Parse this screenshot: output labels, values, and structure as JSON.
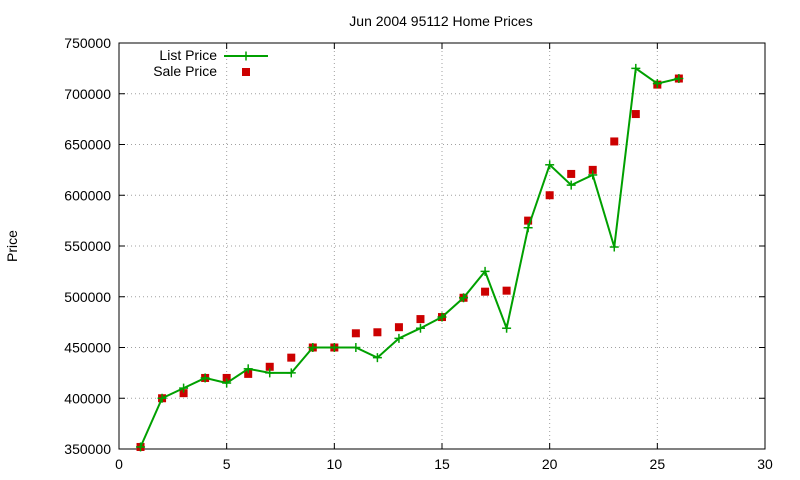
{
  "chart_data": {
    "type": "line",
    "title": "Jun 2004 95112 Home Prices",
    "xlabel": "",
    "ylabel": "Price",
    "xlim": [
      0,
      30
    ],
    "ylim": [
      350000,
      750000
    ],
    "x_ticks": [
      "0",
      "5",
      "10",
      "15",
      "20",
      "25",
      "30"
    ],
    "y_ticks": [
      "350000",
      "400000",
      "450000",
      "500000",
      "550000",
      "600000",
      "650000",
      "700000",
      "750000"
    ],
    "grid": true,
    "legend_position": "top-left",
    "series": [
      {
        "name": "List Price",
        "style": "line-with-plus-markers",
        "color": "#00a000",
        "x": [
          1,
          2,
          3,
          4,
          5,
          6,
          7,
          8,
          9,
          10,
          11,
          12,
          13,
          14,
          15,
          16,
          17,
          18,
          19,
          20,
          21,
          22,
          23,
          24,
          25,
          26
        ],
        "y": [
          352000,
          400000,
          410000,
          420000,
          415000,
          429000,
          425000,
          425000,
          450000,
          450000,
          450000,
          440000,
          459000,
          469000,
          480000,
          499000,
          525000,
          469000,
          568000,
          630000,
          610000,
          620000,
          549000,
          725000,
          710000,
          715000
        ]
      },
      {
        "name": "Sale Price",
        "style": "square-markers",
        "color": "#cc0000",
        "x": [
          1,
          2,
          3,
          4,
          5,
          6,
          7,
          8,
          9,
          10,
          11,
          12,
          13,
          14,
          15,
          16,
          17,
          18,
          19,
          20,
          21,
          22,
          23,
          24,
          25,
          26
        ],
        "y": [
          352000,
          400000,
          405000,
          420000,
          420000,
          424000,
          431000,
          440000,
          450000,
          450000,
          464000,
          465000,
          470000,
          478000,
          480000,
          499000,
          505000,
          506000,
          575000,
          600000,
          621000,
          625000,
          653000,
          680000,
          709000,
          715000
        ]
      }
    ]
  }
}
